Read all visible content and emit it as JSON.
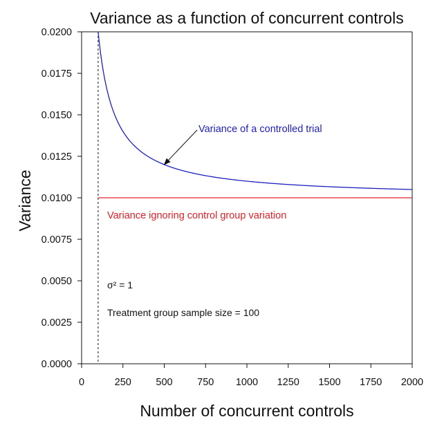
{
  "chart_data": {
    "type": "line",
    "title": "Variance as a function of concurrent controls",
    "xlabel": "Number of concurrent controls",
    "ylabel": "Variance",
    "xlim": [
      0,
      2000
    ],
    "ylim": [
      0,
      0.02
    ],
    "x_ticks": [
      0,
      250,
      500,
      750,
      1000,
      1250,
      1500,
      1750,
      2000
    ],
    "x_tick_labels": [
      "0",
      "250",
      "500",
      "750",
      "1000",
      "1250",
      "1500",
      "1750",
      "2000"
    ],
    "y_ticks": [
      0.0,
      0.0025,
      0.005,
      0.0075,
      0.01,
      0.0125,
      0.015,
      0.0175,
      0.02
    ],
    "y_tick_labels": [
      "0.0000",
      "0.0025",
      "0.0050",
      "0.0075",
      "0.0100",
      "0.0125",
      "0.0150",
      "0.0175",
      "0.0200"
    ],
    "grid": false,
    "series": [
      {
        "name": "Variance of a controlled trial",
        "color": "#1f1fbf",
        "formula": "sigma2/100 + sigma2/x",
        "x": [
          100,
          125,
          150,
          200,
          250,
          300,
          400,
          500,
          600,
          700,
          800,
          1000,
          1250,
          1500,
          1750,
          2000
        ],
        "values": [
          0.02,
          0.018,
          0.01667,
          0.015,
          0.014,
          0.01333,
          0.0125,
          0.012,
          0.01167,
          0.01143,
          0.01125,
          0.011,
          0.0108,
          0.01067,
          0.01057,
          0.0105
        ]
      },
      {
        "name": "Variance ignoring control group variation",
        "color": "#e0202a",
        "x": [
          100,
          2000
        ],
        "values": [
          0.01,
          0.01
        ]
      }
    ],
    "vertical_reference_line": {
      "x": 100,
      "style": "dashed",
      "color": "#111111"
    },
    "annotations": [
      {
        "text": "Variance of a controlled trial",
        "color": "#1f1fbf",
        "arrow_to": {
          "x": 500,
          "y": 0.012
        }
      },
      {
        "text": "Variance ignoring control group variation",
        "color": "#e0202a"
      },
      {
        "text": "σ² = 1"
      },
      {
        "text": "Treatment group sample size = 100"
      }
    ]
  }
}
